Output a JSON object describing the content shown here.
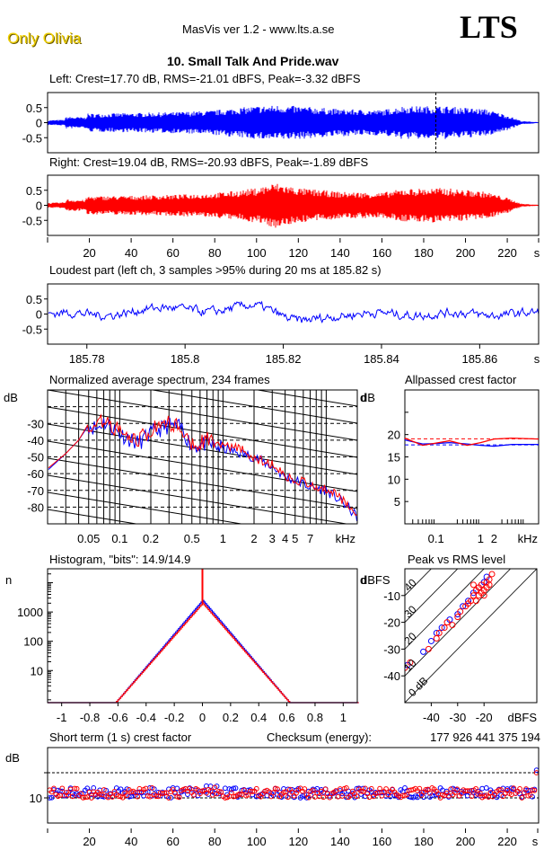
{
  "header": {
    "brand": "Only Olivia",
    "app_title": "MasVis ver 1.2 - www.lts.a.se",
    "logo": "LTS",
    "file_title": "10. Small Talk And Pride.wav"
  },
  "colors": {
    "left": "#0000ff",
    "right": "#ff0000",
    "brand": "#f0d000"
  },
  "chart_data": [
    {
      "id": "left-waveform",
      "type": "area",
      "title": "Left: Crest=17.70 dB, RMS=-21.01 dBFS, Peak=-3.32 dBFS",
      "yticks": [
        "0.5",
        "0",
        "-0.5"
      ],
      "ylim": [
        -1,
        1
      ],
      "xlim": [
        0,
        235
      ],
      "marker_time_s": 185.82,
      "envelope": [
        [
          0,
          0.08
        ],
        [
          8,
          0.1
        ],
        [
          9,
          0.2
        ],
        [
          18,
          0.18
        ],
        [
          19,
          0.3
        ],
        [
          40,
          0.32
        ],
        [
          60,
          0.35
        ],
        [
          78,
          0.4
        ],
        [
          92,
          0.5
        ],
        [
          100,
          0.55
        ],
        [
          110,
          0.58
        ],
        [
          120,
          0.55
        ],
        [
          140,
          0.45
        ],
        [
          160,
          0.42
        ],
        [
          170,
          0.55
        ],
        [
          190,
          0.55
        ],
        [
          210,
          0.45
        ],
        [
          220,
          0.25
        ],
        [
          227,
          0.05
        ],
        [
          235,
          0.02
        ]
      ]
    },
    {
      "id": "right-waveform",
      "type": "area",
      "title": "Right: Crest=19.04 dB, RMS=-20.93 dBFS, Peak=-1.89 dBFS",
      "yticks": [
        "0.5",
        "0",
        "-0.5"
      ],
      "ylim": [
        -1,
        1
      ],
      "xlim": [
        0,
        235
      ],
      "xticks": [
        "20",
        "40",
        "60",
        "80",
        "100",
        "120",
        "140",
        "160",
        "180",
        "200",
        "220",
        "s"
      ],
      "envelope": [
        [
          0,
          0.08
        ],
        [
          8,
          0.1
        ],
        [
          9,
          0.2
        ],
        [
          18,
          0.18
        ],
        [
          19,
          0.3
        ],
        [
          40,
          0.32
        ],
        [
          60,
          0.35
        ],
        [
          78,
          0.4
        ],
        [
          92,
          0.5
        ],
        [
          100,
          0.58
        ],
        [
          109,
          0.75
        ],
        [
          120,
          0.58
        ],
        [
          140,
          0.45
        ],
        [
          160,
          0.42
        ],
        [
          170,
          0.55
        ],
        [
          190,
          0.58
        ],
        [
          210,
          0.45
        ],
        [
          220,
          0.25
        ],
        [
          227,
          0.05
        ],
        [
          235,
          0.02
        ]
      ]
    },
    {
      "id": "loudest-part",
      "type": "line",
      "title": "Loudest part (left  ch, 3 samples >95% during 20 ms at 185.82 s)",
      "yticks": [
        "0.5",
        "0",
        "-0.5"
      ],
      "ylim": [
        -1,
        1
      ],
      "xlim": [
        185.772,
        185.872
      ],
      "xticks": [
        "185.78",
        "185.8",
        "185.82",
        "185.84",
        "185.86",
        "s"
      ],
      "xtick_values": [
        185.78,
        185.8,
        185.82,
        185.84,
        185.86
      ]
    },
    {
      "id": "spectrum",
      "type": "line",
      "title": "Normalized average spectrum, 234 frames",
      "ylabel": "dB",
      "yticks": [
        "-30",
        "-40",
        "-50",
        "-60",
        "-70",
        "-80"
      ],
      "ylim": [
        -90,
        -10
      ],
      "xlabel": "kHz",
      "xscale": "log",
      "xlim": [
        0.02,
        20
      ],
      "xticks": [
        "0.05",
        "0.1",
        "0.2",
        "0.5",
        "1",
        "2",
        "3",
        "4",
        "5",
        "7",
        "kHz"
      ],
      "series": [
        {
          "name": "left",
          "points": [
            [
              0.02,
              -58
            ],
            [
              0.03,
              -48
            ],
            [
              0.04,
              -40
            ],
            [
              0.05,
              -31
            ],
            [
              0.06,
              -33
            ],
            [
              0.07,
              -29
            ],
            [
              0.1,
              -36
            ],
            [
              0.15,
              -42
            ],
            [
              0.2,
              -36
            ],
            [
              0.3,
              -31
            ],
            [
              0.4,
              -33
            ],
            [
              0.5,
              -44
            ],
            [
              0.7,
              -42
            ],
            [
              1,
              -45
            ],
            [
              1.5,
              -48
            ],
            [
              2,
              -50
            ],
            [
              3,
              -56
            ],
            [
              4,
              -62
            ],
            [
              5,
              -64
            ],
            [
              7,
              -68
            ],
            [
              10,
              -70
            ],
            [
              15,
              -78
            ],
            [
              20,
              -86
            ]
          ]
        },
        {
          "name": "right",
          "points": [
            [
              0.02,
              -57
            ],
            [
              0.03,
              -48
            ],
            [
              0.04,
              -40
            ],
            [
              0.05,
              -30
            ],
            [
              0.06,
              -32
            ],
            [
              0.07,
              -28
            ],
            [
              0.1,
              -35
            ],
            [
              0.15,
              -40
            ],
            [
              0.2,
              -34
            ],
            [
              0.3,
              -30
            ],
            [
              0.4,
              -32
            ],
            [
              0.5,
              -42
            ],
            [
              0.7,
              -40
            ],
            [
              1,
              -43
            ],
            [
              1.5,
              -46
            ],
            [
              2,
              -50
            ],
            [
              3,
              -55
            ],
            [
              4,
              -61
            ],
            [
              5,
              -63
            ],
            [
              7,
              -67
            ],
            [
              10,
              -69
            ],
            [
              15,
              -76
            ],
            [
              20,
              -83
            ]
          ]
        }
      ]
    },
    {
      "id": "allpassed-crest",
      "type": "line",
      "title": "Allpassed crest factor",
      "ylabel": "dB",
      "yticks": [
        "20",
        "15",
        "10",
        "5"
      ],
      "ylim": [
        0,
        30
      ],
      "xlabel": "kHz",
      "xscale": "log",
      "xlim": [
        0.02,
        20
      ],
      "xticks": [
        "0.1",
        "1",
        "2",
        "kHz"
      ],
      "reference_levels": {
        "left": 17.7,
        "right": 19.04
      },
      "series": [
        {
          "name": "left",
          "points": [
            [
              0.02,
              18.8
            ],
            [
              0.05,
              17.9
            ],
            [
              0.1,
              18.0
            ],
            [
              0.2,
              18.2
            ],
            [
              0.5,
              17.9
            ],
            [
              1,
              17.6
            ],
            [
              2,
              17.4
            ],
            [
              5,
              17.8
            ],
            [
              20,
              17.8
            ]
          ]
        },
        {
          "name": "right",
          "points": [
            [
              0.02,
              19.2
            ],
            [
              0.05,
              17.6
            ],
            [
              0.1,
              18.1
            ],
            [
              0.2,
              18.6
            ],
            [
              0.5,
              17.6
            ],
            [
              1,
              18.2
            ],
            [
              2,
              19.0
            ],
            [
              5,
              19.2
            ],
            [
              20,
              19.0
            ]
          ]
        }
      ]
    },
    {
      "id": "histogram",
      "type": "line",
      "title": "Histogram, \"bits\": 14.9/14.9",
      "ylabel": "n",
      "yscale": "log",
      "yticks": [
        "1000",
        "100",
        "10"
      ],
      "ylim": [
        0.8,
        30000
      ],
      "xlim": [
        -1.1,
        1.1
      ],
      "xticks": [
        "-1",
        "-0.8",
        "-0.6",
        "-0.4",
        "-0.2",
        "0",
        "0.2",
        "0.4",
        "0.6",
        "0.8",
        "1"
      ],
      "series": [
        {
          "name": "left",
          "peak": 2500,
          "extent": [
            -0.66,
            0.64
          ]
        },
        {
          "name": "right",
          "peak": 2000,
          "center_spike": 30000,
          "extent": [
            -0.8,
            0.64
          ]
        }
      ]
    },
    {
      "id": "peak-vs-rms",
      "type": "scatter",
      "title": "Peak vs RMS level",
      "ylabel": "dBFS",
      "xlabel": "dBFS",
      "xlim": [
        -50,
        0
      ],
      "ylim": [
        -50,
        0
      ],
      "xticks": [
        "-40",
        "-30",
        "-20",
        "dBFS"
      ],
      "yticks": [
        "-10",
        "-20",
        "-30",
        "-40"
      ],
      "crest_lines": [
        "0 dB",
        "10",
        "20",
        "30",
        "40"
      ],
      "series": [
        {
          "name": "left",
          "points": [
            [
              -49,
              -36
            ],
            [
              -43,
              -31
            ],
            [
              -40,
              -27
            ],
            [
              -38,
              -24
            ],
            [
              -36,
              -22
            ],
            [
              -33,
              -19
            ],
            [
              -30,
              -17
            ],
            [
              -28,
              -14
            ],
            [
              -26,
              -12
            ],
            [
              -24,
              -9
            ],
            [
              -22,
              -7
            ],
            [
              -20,
              -5
            ],
            [
              -19,
              -3
            ]
          ]
        },
        {
          "name": "right",
          "points": [
            [
              -50,
              -37
            ],
            [
              -48,
              -35
            ],
            [
              -41,
              -30
            ],
            [
              -38,
              -26
            ],
            [
              -37,
              -24
            ],
            [
              -35,
              -22
            ],
            [
              -34,
              -20
            ],
            [
              -32,
              -21
            ],
            [
              -30,
              -18
            ],
            [
              -29,
              -16
            ],
            [
              -27,
              -14
            ],
            [
              -26,
              -13
            ],
            [
              -25,
              -12
            ],
            [
              -24,
              -10
            ],
            [
              -23,
              -8
            ],
            [
              -22,
              -7
            ],
            [
              -21,
              -6
            ],
            [
              -20,
              -8
            ],
            [
              -19,
              -5
            ],
            [
              -18,
              -4
            ],
            [
              -17,
              -2
            ],
            [
              -18,
              -6
            ],
            [
              -22,
              -10
            ],
            [
              -24,
              -6
            ],
            [
              -20,
              -10
            ],
            [
              -23,
              -12
            ],
            [
              -21,
              -9
            ],
            [
              -19,
              -7
            ]
          ]
        }
      ]
    },
    {
      "id": "short-term-crest",
      "type": "scatter",
      "title": "Short term (1 s) crest factor",
      "checksum_label": "Checksum (energy):",
      "checksum_value": "177 926 441 375 194",
      "ylabel": "dB",
      "yticks": [
        "10"
      ],
      "ylim": [
        0,
        30
      ],
      "reference_lines": [
        10,
        20
      ],
      "xlim": [
        0,
        235
      ],
      "xticks": [
        "20",
        "40",
        "60",
        "80",
        "100",
        "120",
        "140",
        "160",
        "180",
        "200",
        "220",
        "s"
      ],
      "mean_crest_db": 12,
      "spread_db": 2,
      "end_point": {
        "t": 234,
        "left": 21,
        "right": 20
      }
    }
  ]
}
